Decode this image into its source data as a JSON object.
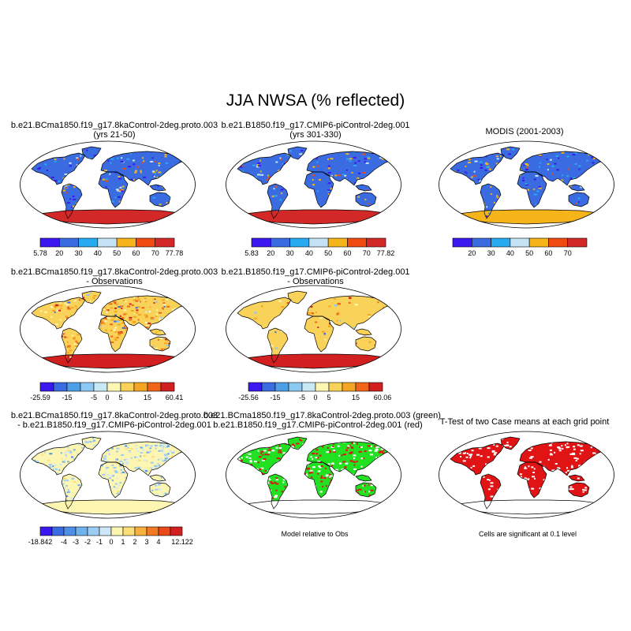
{
  "title": "JJA NWSA (% reflected)",
  "panels": [
    {
      "id": "p1",
      "title1": "b.e21.BCma1850.f19_g17.8kaControl-2deg.proto.003",
      "title2": "(yrs 21-50)",
      "map": "abs"
    },
    {
      "id": "p2",
      "title1": "b.e21.B1850.f19_g17.CMIP6-piControl-2deg.001",
      "title2": "(yrs 301-330)",
      "map": "abs"
    },
    {
      "id": "p3",
      "title1": "MODIS (2001-2003)",
      "title2": "",
      "map": "obs"
    },
    {
      "id": "p4",
      "title1": "b.e21.BCma1850.f19_g17.8kaControl-2deg.proto.003",
      "title2": "- Observations",
      "map": "diff"
    },
    {
      "id": "p5",
      "title1": "b.e21.B1850.f19_g17.CMIP6-piControl-2deg.001",
      "title2": "- Observations",
      "map": "diff"
    },
    {
      "id": "p7",
      "title1": "b.e21.BCma1850.f19_g17.8kaControl-2deg.proto.003",
      "title2": "- b.e21.B1850.f19_g17.CMIP6-piControl-2deg.001",
      "map": "casediff"
    },
    {
      "id": "p8",
      "title1": "b.e21.BCma1850.f19_g17.8kaControl-2deg.proto.003 (green)",
      "title2": "b.e21.B1850.f19_g17.CMIP6-piControl-2deg.001 (red)",
      "map": "relative"
    },
    {
      "id": "p9",
      "title1": "T-Test of two Case means at each grid point",
      "title2": "",
      "map": "ttest"
    }
  ],
  "colorbars": {
    "abs1": {
      "colors": [
        "#3c18f0",
        "#3a6be0",
        "#27aaf0",
        "#c4e4f6",
        "#f5b51a",
        "#f04a10",
        "#d22828"
      ],
      "labels": [
        "5.78",
        "20",
        "30",
        "40",
        "50",
        "60",
        "70",
        "77.78"
      ]
    },
    "abs2": {
      "colors": [
        "#3c18f0",
        "#3a6be0",
        "#27aaf0",
        "#c4e4f6",
        "#f5b51a",
        "#f04a10",
        "#d22828"
      ],
      "labels": [
        "5.83",
        "20",
        "30",
        "40",
        "50",
        "60",
        "70",
        "77.82"
      ]
    },
    "obs": {
      "colors": [
        "#3c18f0",
        "#3a6be0",
        "#27aaf0",
        "#c4e4f6",
        "#f5b51a",
        "#f04a10",
        "#d22828"
      ],
      "labels": [
        "",
        "20",
        "30",
        "40",
        "50",
        "60",
        "70",
        ""
      ]
    },
    "diff1": {
      "colors": [
        "#3c18f0",
        "#3a6be0",
        "#4f9fe6",
        "#8cc9f2",
        "#c9e8f6",
        "#fdf6b3",
        "#f9d25a",
        "#f5a524",
        "#f0651a",
        "#d22020"
      ],
      "labels": [
        "-25.59",
        "-15",
        "-5",
        "0",
        "5",
        "15",
        "60.41"
      ],
      "tickIndex": [
        0,
        2,
        4,
        5,
        6,
        8,
        10
      ]
    },
    "diff2": {
      "colors": [
        "#3c18f0",
        "#3a6be0",
        "#4f9fe6",
        "#8cc9f2",
        "#c9e8f6",
        "#fdf6b3",
        "#f9d25a",
        "#f5a524",
        "#f0651a",
        "#d22020"
      ],
      "labels": [
        "-25.56",
        "-15",
        "-5",
        "0",
        "5",
        "15",
        "60.06"
      ],
      "tickIndex": [
        0,
        2,
        4,
        5,
        6,
        8,
        10
      ]
    },
    "casediff": {
      "colors": [
        "#3c18f0",
        "#3a6be0",
        "#4f8fe6",
        "#6fb2ee",
        "#9dcdf4",
        "#cde6f8",
        "#fdf6b3",
        "#fbe07a",
        "#f8b13e",
        "#f37a22",
        "#e84a1a",
        "#d21f1f"
      ],
      "labels": [
        "-18.842",
        "-4",
        "-3",
        "-2",
        "-1",
        "0",
        "1",
        "2",
        "3",
        "4",
        "12.122"
      ],
      "tickIndex": [
        0,
        2,
        3,
        4,
        5,
        6,
        7,
        8,
        9,
        10,
        12
      ]
    }
  },
  "notes": {
    "relative": "Model relative to Obs",
    "ttest": "Cells are significant at 0.1 level"
  },
  "colors": {
    "antarctica_abs": "#d22828",
    "antarctica_obs": "#f5b51a",
    "green": "#22e022",
    "red": "#e01414"
  }
}
